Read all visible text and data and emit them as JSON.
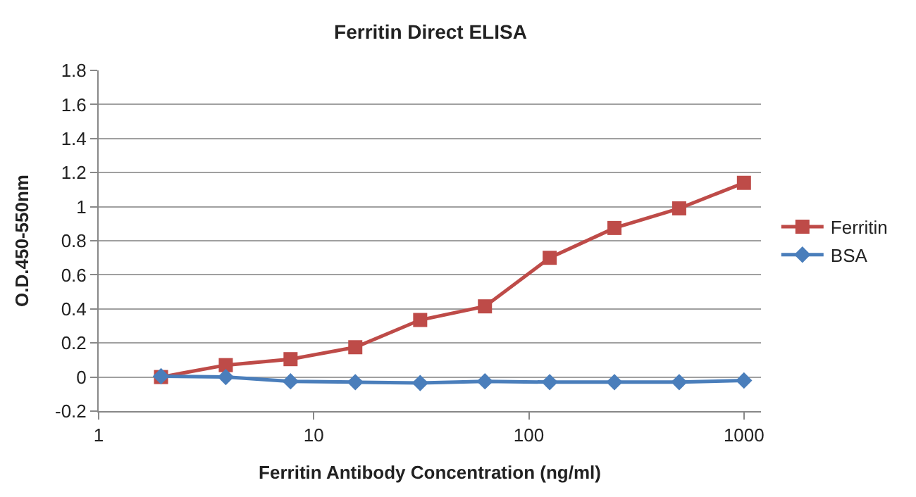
{
  "chart_data": {
    "type": "line",
    "title": "Ferritin Direct ELISA",
    "xlabel": "Ferritin Antibody Concentration (ng/ml)",
    "ylabel": "O.D.450-550nm",
    "x": [
      1.95,
      3.9,
      7.8,
      15.6,
      31.25,
      62.5,
      125,
      250,
      500,
      1000
    ],
    "series": [
      {
        "name": "Ferritin",
        "color": "#be4b48",
        "marker": "square",
        "values": [
          0.0,
          0.07,
          0.105,
          0.175,
          0.335,
          0.415,
          0.7,
          0.875,
          0.99,
          1.14
        ]
      },
      {
        "name": "BSA",
        "color": "#4a7ebb",
        "marker": "diamond",
        "values": [
          0.005,
          0.0,
          -0.025,
          -0.03,
          -0.035,
          -0.025,
          -0.03,
          -0.03,
          -0.03,
          -0.02
        ]
      }
    ],
    "log": "x",
    "xlim": [
      1,
      1200
    ],
    "xticks": [
      1,
      10,
      100,
      1000
    ],
    "ylim": [
      -0.2,
      1.8
    ],
    "yticks": [
      -0.2,
      0,
      0.2,
      0.4,
      0.6,
      0.8,
      1,
      1.2,
      1.4,
      1.6,
      1.8
    ],
    "grid": "y",
    "legend": "right",
    "line_style": "solid"
  }
}
